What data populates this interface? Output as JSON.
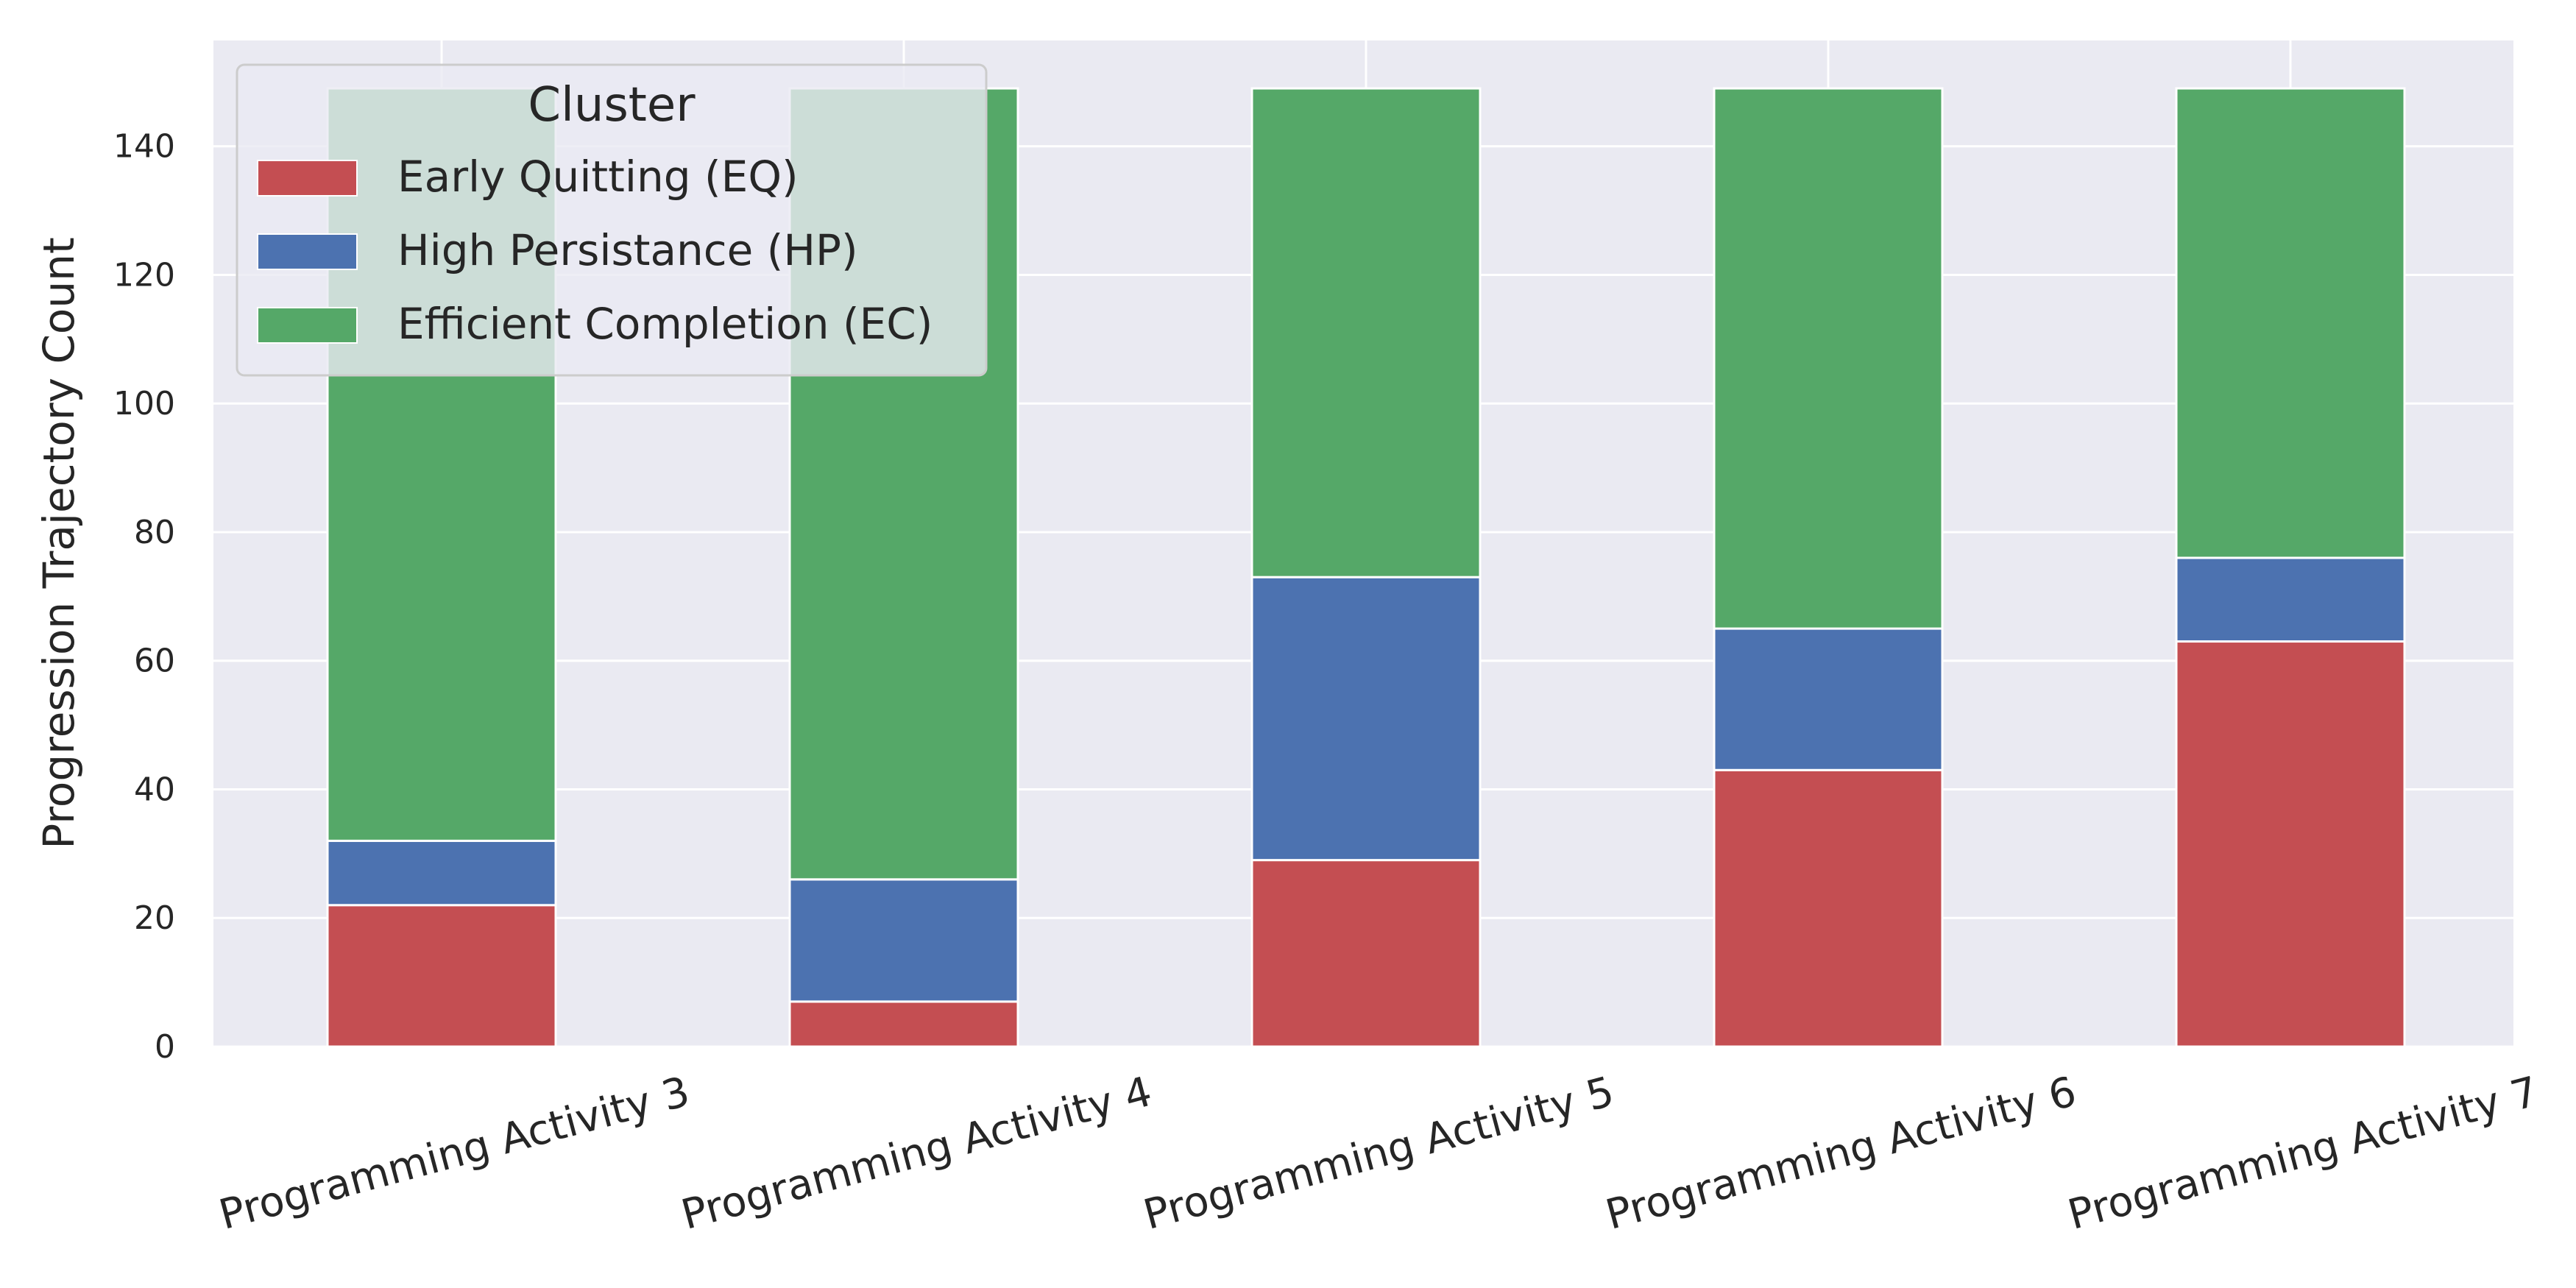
{
  "chart_data": {
    "type": "bar",
    "stacked": true,
    "categories": [
      "Programming Activity 3",
      "Programming Activity 4",
      "Programming Activity 5",
      "Programming Activity 6",
      "Programming Activity 7"
    ],
    "series": [
      {
        "name": "Early Quitting (EQ)",
        "color": "#c44e52",
        "values": [
          22,
          7,
          29,
          43,
          63
        ]
      },
      {
        "name": "High Persistance (HP)",
        "color": "#4c72b0",
        "values": [
          10,
          19,
          44,
          22,
          13
        ]
      },
      {
        "name": "Efficient Completion (EC)",
        "color": "#55a868",
        "values": [
          117,
          123,
          76,
          84,
          73
        ]
      }
    ],
    "title": "",
    "xlabel": "",
    "ylabel": "Progression Trajectory Count",
    "ylim": [
      0,
      156.45
    ],
    "yticks": [
      0,
      20,
      40,
      60,
      80,
      100,
      120,
      140
    ],
    "grid": true,
    "legend": {
      "title": "Cluster",
      "placement": "top-left"
    },
    "colors": {
      "background": "#eaeaf2",
      "grid": "#ffffff",
      "text": "#262626"
    }
  }
}
